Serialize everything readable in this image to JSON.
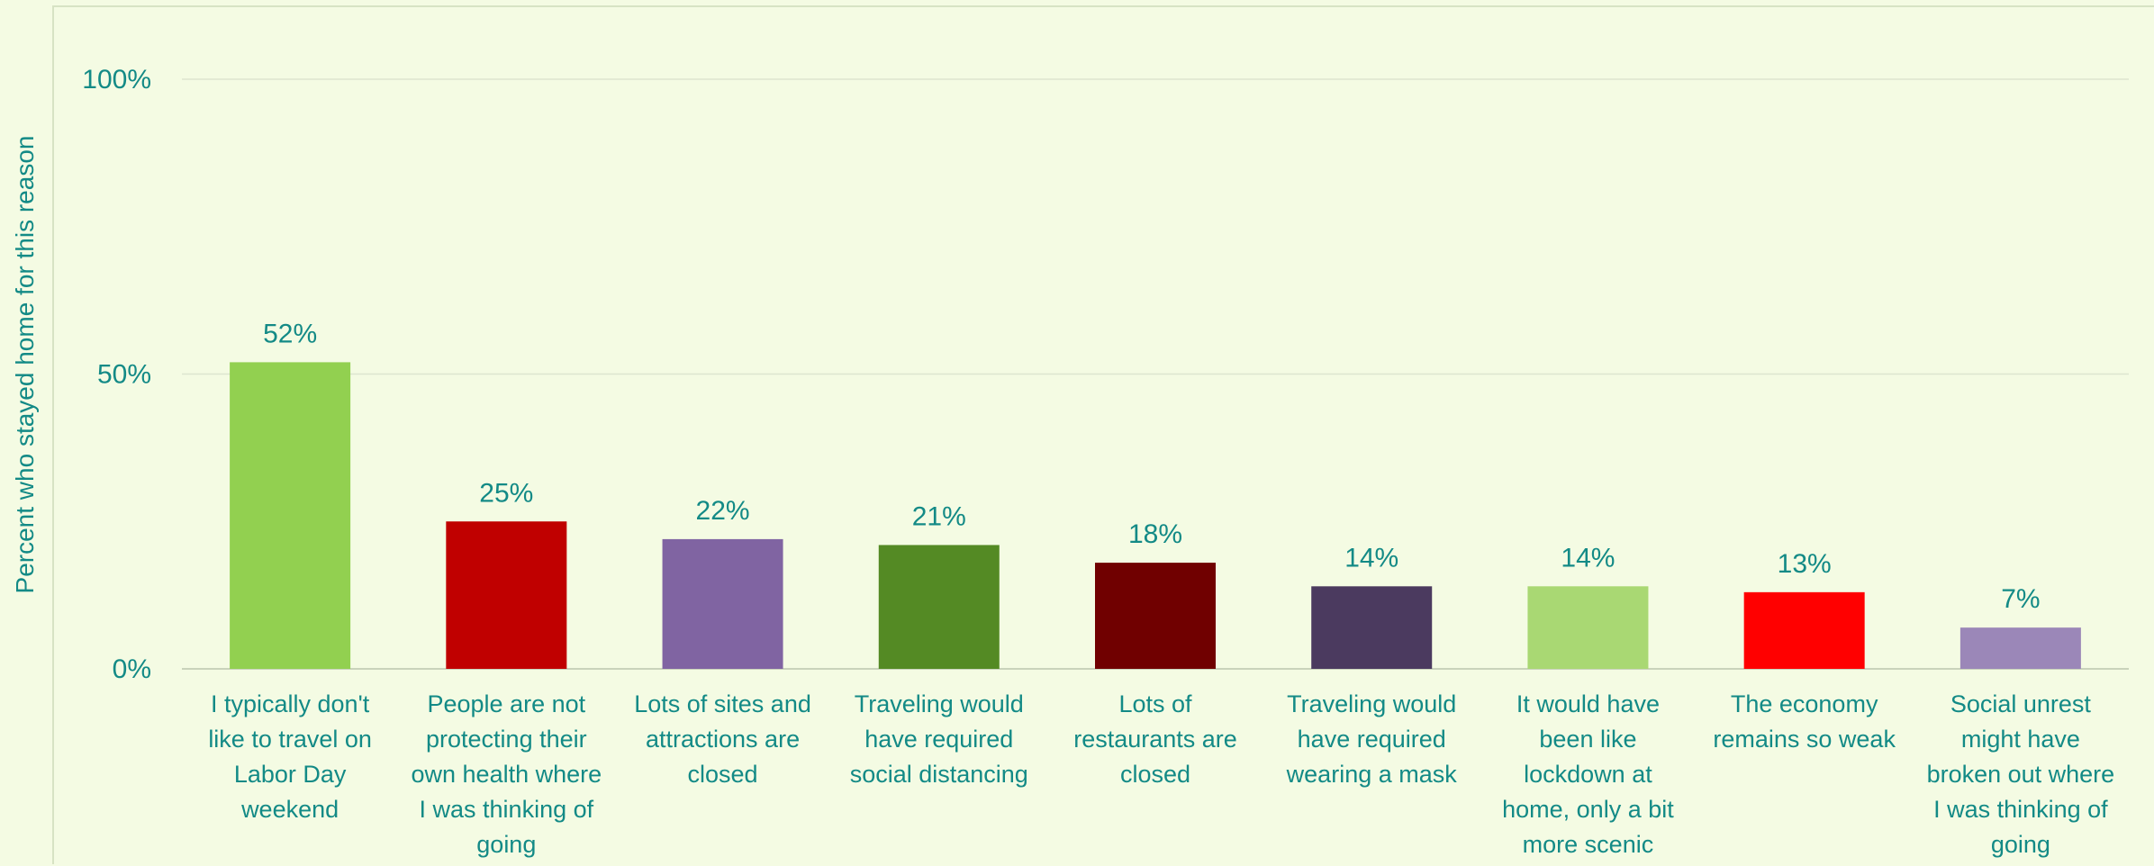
{
  "chart_data": {
    "type": "bar",
    "title": "",
    "xlabel": "",
    "ylabel": "Percent who stayed home for this reason",
    "ylim": [
      0,
      100
    ],
    "yticks": [
      "0%",
      "50%",
      "100%"
    ],
    "ytick_values": [
      0,
      50,
      100
    ],
    "grid": true,
    "legend": "none",
    "categories": [
      "I typically don't like to travel on Labor Day weekend",
      "People are not protecting their own health where I was thinking of going",
      "Lots of sites and attractions are closed",
      "Traveling would have required social distancing",
      "Lots of restaurants are closed",
      "Traveling would have required wearing a mask",
      "It would have been like lockdown at home, only a bit more scenic",
      "The economy remains so weak",
      "Social unrest might have broken out where I was thinking of going"
    ],
    "category_lines": [
      [
        "I typically don't",
        "like to travel on",
        "Labor Day",
        "weekend"
      ],
      [
        "People are not",
        "protecting their",
        "own health where",
        "I was thinking of",
        "going"
      ],
      [
        "Lots of sites and",
        "attractions are",
        "closed"
      ],
      [
        "Traveling would",
        "have required",
        "social distancing"
      ],
      [
        "Lots of",
        "restaurants are",
        "closed"
      ],
      [
        "Traveling would",
        "have required",
        "wearing a mask"
      ],
      [
        "It would have",
        "been like",
        "lockdown at",
        "home, only a bit",
        "more scenic"
      ],
      [
        "The economy",
        "remains so weak"
      ],
      [
        "Social unrest",
        "might have",
        "broken out where",
        "I was thinking of",
        "going"
      ]
    ],
    "values": [
      52,
      25,
      22,
      21,
      18,
      14,
      14,
      13,
      7
    ],
    "data_labels": [
      "52%",
      "25%",
      "22%",
      "21%",
      "18%",
      "14%",
      "14%",
      "13%",
      "7%"
    ],
    "colors": [
      "#92d050",
      "#c00000",
      "#8064a2",
      "#548a24",
      "#700000",
      "#4b3a5f",
      "#a9d873",
      "#ff0000",
      "#9b87b8"
    ],
    "text_color": "#138a86",
    "grid_color": "#dde5d0"
  }
}
